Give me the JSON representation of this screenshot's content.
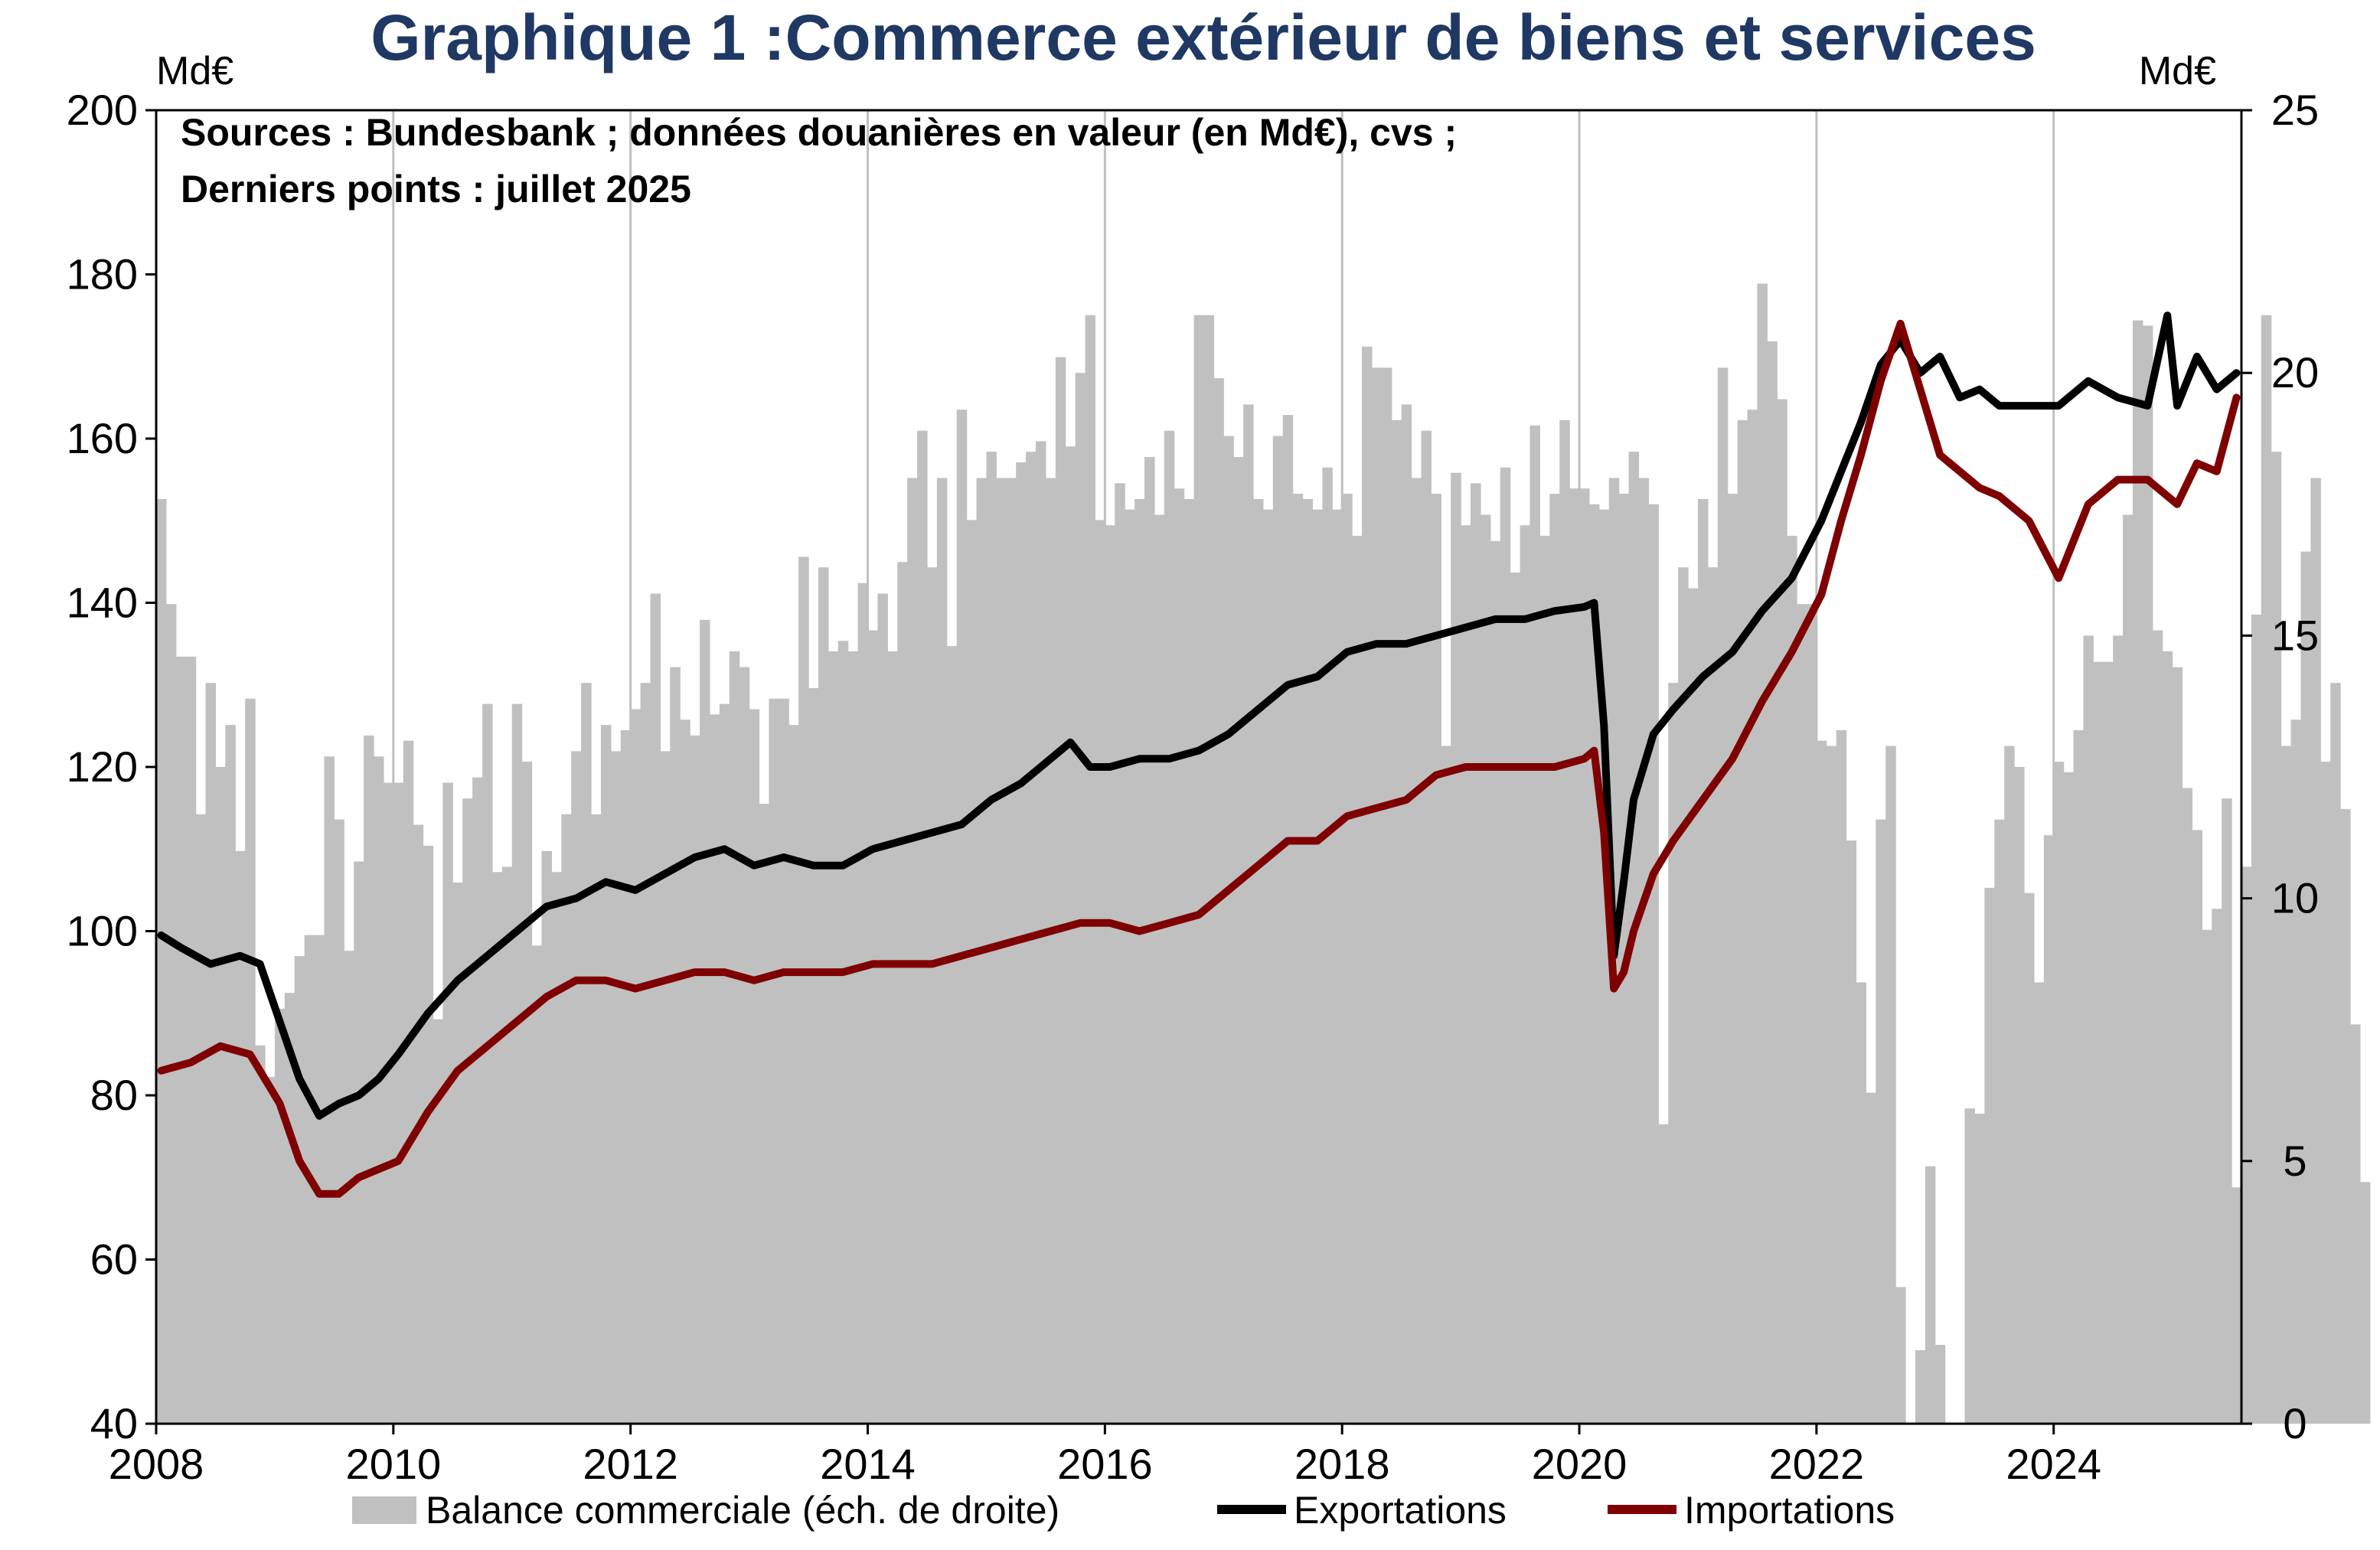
{
  "chart_data": {
    "type": "bar+line",
    "title": "Graphique 1 :Commerce extérieur de biens et services",
    "left_unit": "Md€",
    "right_unit": "Md€",
    "notes": [
      "Sources : Bundesbank ; données douanières en valeur (en Md€), cvs ;",
      "Derniers points : juillet 2025"
    ],
    "x_start": "2008-01",
    "x_end": "2025-07",
    "x_ticks": [
      "2008",
      "2010",
      "2012",
      "2014",
      "2016",
      "2018",
      "2020",
      "2022",
      "2024"
    ],
    "y_left": {
      "min": 40,
      "max": 200,
      "ticks": [
        "40",
        "60",
        "80",
        "100",
        "120",
        "140",
        "160",
        "180",
        "200"
      ]
    },
    "y_right": {
      "min": 0,
      "max": 25,
      "ticks": [
        "0",
        "5",
        "10",
        "15",
        "20",
        "25"
      ]
    },
    "grid": "vertical",
    "legend_position": "bottom",
    "series": [
      {
        "name": "Balance commerciale (éch. de droite)",
        "kind": "bar",
        "axis": "right",
        "color": "#C0C0C0",
        "values": [
          17.6,
          15.6,
          14.6,
          14.6,
          11.6,
          14.1,
          12.5,
          13.3,
          10.9,
          13.8,
          7.2,
          6.6,
          7.9,
          8.2,
          8.9,
          9.3,
          9.3,
          12.7,
          11.5,
          9.0,
          10.7,
          13.1,
          12.7,
          12.2,
          12.2,
          13.0,
          11.4,
          11.0,
          7.7,
          12.2,
          10.3,
          11.9,
          12.3,
          13.7,
          10.5,
          10.6,
          13.7,
          12.6,
          9.1,
          10.9,
          10.5,
          11.6,
          12.8,
          14.1,
          11.6,
          13.3,
          12.8,
          13.2,
          13.6,
          14.1,
          15.8,
          12.8,
          14.4,
          13.4,
          13.1,
          15.3,
          13.5,
          13.7,
          14.7,
          14.4,
          13.6,
          11.8,
          13.8,
          13.8,
          13.3,
          16.5,
          14.0,
          16.3,
          14.7,
          14.9,
          14.7,
          16.0,
          15.1,
          15.8,
          14.7,
          16.4,
          18.0,
          18.9,
          16.3,
          18.0,
          14.8,
          19.3,
          17.2,
          18.0,
          18.5,
          18.0,
          18.0,
          18.3,
          18.5,
          18.7,
          18.0,
          20.3,
          18.6,
          20.0,
          21.1,
          17.2,
          17.1,
          17.9,
          17.4,
          17.6,
          18.4,
          17.3,
          18.9,
          17.8,
          17.6,
          21.1,
          21.1,
          19.9,
          18.8,
          18.4,
          19.4,
          17.6,
          17.4,
          18.8,
          19.2,
          17.7,
          17.6,
          17.4,
          18.2,
          17.4,
          17.7,
          16.9,
          20.5,
          20.1,
          20.1,
          19.1,
          19.4,
          18.0,
          18.9,
          17.7,
          12.9,
          18.1,
          17.1,
          17.9,
          17.3,
          16.8,
          18.2,
          16.2,
          17.1,
          19.0,
          16.9,
          17.7,
          19.1,
          17.8,
          17.8,
          17.5,
          17.4,
          18.0,
          17.7,
          18.5,
          18.0,
          17.5,
          5.7,
          14.1,
          16.3,
          15.9,
          17.6,
          16.3,
          20.1,
          17.7,
          19.1,
          19.3,
          21.7,
          20.6,
          19.5,
          16.9,
          15.6,
          15.6,
          13.0,
          12.9,
          13.2,
          11.1,
          8.4,
          6.3,
          11.5,
          12.9,
          2.6,
          0.0,
          1.4,
          4.9,
          1.5,
          0.0,
          0.0,
          6.0,
          5.9,
          10.2,
          11.5,
          12.9,
          12.5,
          10.1,
          8.4,
          11.2,
          12.6,
          12.4,
          13.2,
          15.0,
          14.5,
          14.5,
          15.0,
          17.3,
          21.0,
          20.9,
          15.1,
          14.7,
          14.4,
          12.1,
          11.3,
          9.4,
          9.8,
          11.9,
          4.5,
          10.6,
          15.4,
          21.1,
          18.5,
          12.9,
          13.4,
          16.6,
          18.0,
          12.6,
          14.1,
          11.7,
          7.6,
          4.6
        ]
      },
      {
        "name": "Exportations",
        "kind": "line",
        "axis": "left",
        "color": "#000000",
        "points": [
          [
            "2008-01",
            99.5
          ],
          [
            "2008-03",
            98.0
          ],
          [
            "2008-06",
            96.0
          ],
          [
            "2008-09",
            97.0
          ],
          [
            "2008-11",
            96.0
          ],
          [
            "2009-01",
            89.0
          ],
          [
            "2009-03",
            82.0
          ],
          [
            "2009-05",
            77.5
          ],
          [
            "2009-07",
            79.0
          ],
          [
            "2009-09",
            80.0
          ],
          [
            "2009-11",
            82.0
          ],
          [
            "2010-01",
            85.0
          ],
          [
            "2010-04",
            90.0
          ],
          [
            "2010-07",
            94.0
          ],
          [
            "2010-10",
            97.0
          ],
          [
            "2011-01",
            100.0
          ],
          [
            "2011-04",
            103.0
          ],
          [
            "2011-07",
            104.0
          ],
          [
            "2011-10",
            106.0
          ],
          [
            "2012-01",
            105.0
          ],
          [
            "2012-04",
            107.0
          ],
          [
            "2012-07",
            109.0
          ],
          [
            "2012-10",
            110.0
          ],
          [
            "2013-01",
            108.0
          ],
          [
            "2013-04",
            109.0
          ],
          [
            "2013-07",
            108.0
          ],
          [
            "2013-10",
            108.0
          ],
          [
            "2014-01",
            110.0
          ],
          [
            "2014-04",
            111.0
          ],
          [
            "2014-07",
            112.0
          ],
          [
            "2014-10",
            113.0
          ],
          [
            "2015-01",
            116.0
          ],
          [
            "2015-04",
            118.0
          ],
          [
            "2015-07",
            121.0
          ],
          [
            "2015-09",
            123.0
          ],
          [
            "2015-11",
            120.0
          ],
          [
            "2016-01",
            120.0
          ],
          [
            "2016-04",
            121.0
          ],
          [
            "2016-07",
            121.0
          ],
          [
            "2016-10",
            122.0
          ],
          [
            "2017-01",
            124.0
          ],
          [
            "2017-04",
            127.0
          ],
          [
            "2017-07",
            130.0
          ],
          [
            "2017-10",
            131.0
          ],
          [
            "2018-01",
            134.0
          ],
          [
            "2018-04",
            135.0
          ],
          [
            "2018-07",
            135.0
          ],
          [
            "2018-10",
            136.0
          ],
          [
            "2019-01",
            137.0
          ],
          [
            "2019-04",
            138.0
          ],
          [
            "2019-07",
            138.0
          ],
          [
            "2019-10",
            139.0
          ],
          [
            "2020-01",
            139.5
          ],
          [
            "2020-02",
            140.0
          ],
          [
            "2020-03",
            125.0
          ],
          [
            "2020-04",
            97.0
          ],
          [
            "2020-05",
            106.0
          ],
          [
            "2020-06",
            116.0
          ],
          [
            "2020-08",
            124.0
          ],
          [
            "2020-10",
            127.0
          ],
          [
            "2021-01",
            131.0
          ],
          [
            "2021-04",
            134.0
          ],
          [
            "2021-07",
            139.0
          ],
          [
            "2021-10",
            143.0
          ],
          [
            "2022-01",
            150.0
          ],
          [
            "2022-03",
            156.0
          ],
          [
            "2022-05",
            162.0
          ],
          [
            "2022-07",
            169.0
          ],
          [
            "2022-09",
            172.0
          ],
          [
            "2022-11",
            168.0
          ],
          [
            "2023-01",
            170.0
          ],
          [
            "2023-03",
            165.0
          ],
          [
            "2023-05",
            166.0
          ],
          [
            "2023-07",
            164.0
          ],
          [
            "2023-10",
            164.0
          ],
          [
            "2024-01",
            164.0
          ],
          [
            "2024-04",
            167.0
          ],
          [
            "2024-07",
            165.0
          ],
          [
            "2024-10",
            164.0
          ],
          [
            "2024-12",
            175.0
          ],
          [
            "2025-01",
            164.0
          ],
          [
            "2025-03",
            170.0
          ],
          [
            "2025-05",
            166.0
          ],
          [
            "2025-07",
            168.0
          ]
        ]
      },
      {
        "name": "Importations",
        "kind": "line",
        "axis": "left",
        "color": "#7F0000",
        "points": [
          [
            "2008-01",
            83.0
          ],
          [
            "2008-04",
            84.0
          ],
          [
            "2008-07",
            86.0
          ],
          [
            "2008-10",
            85.0
          ],
          [
            "2009-01",
            79.0
          ],
          [
            "2009-03",
            72.0
          ],
          [
            "2009-05",
            68.0
          ],
          [
            "2009-07",
            68.0
          ],
          [
            "2009-09",
            70.0
          ],
          [
            "2009-11",
            71.0
          ],
          [
            "2010-01",
            72.0
          ],
          [
            "2010-04",
            78.0
          ],
          [
            "2010-07",
            83.0
          ],
          [
            "2010-10",
            86.0
          ],
          [
            "2011-01",
            89.0
          ],
          [
            "2011-04",
            92.0
          ],
          [
            "2011-07",
            94.0
          ],
          [
            "2011-10",
            94.0
          ],
          [
            "2012-01",
            93.0
          ],
          [
            "2012-04",
            94.0
          ],
          [
            "2012-07",
            95.0
          ],
          [
            "2012-10",
            95.0
          ],
          [
            "2013-01",
            94.0
          ],
          [
            "2013-04",
            95.0
          ],
          [
            "2013-07",
            95.0
          ],
          [
            "2013-10",
            95.0
          ],
          [
            "2014-01",
            96.0
          ],
          [
            "2014-04",
            96.0
          ],
          [
            "2014-07",
            96.0
          ],
          [
            "2014-10",
            97.0
          ],
          [
            "2015-01",
            98.0
          ],
          [
            "2015-04",
            99.0
          ],
          [
            "2015-07",
            100.0
          ],
          [
            "2015-10",
            101.0
          ],
          [
            "2016-01",
            101.0
          ],
          [
            "2016-04",
            100.0
          ],
          [
            "2016-07",
            101.0
          ],
          [
            "2016-10",
            102.0
          ],
          [
            "2017-01",
            105.0
          ],
          [
            "2017-04",
            108.0
          ],
          [
            "2017-07",
            111.0
          ],
          [
            "2017-10",
            111.0
          ],
          [
            "2018-01",
            114.0
          ],
          [
            "2018-04",
            115.0
          ],
          [
            "2018-07",
            116.0
          ],
          [
            "2018-10",
            119.0
          ],
          [
            "2019-01",
            120.0
          ],
          [
            "2019-04",
            120.0
          ],
          [
            "2019-07",
            120.0
          ],
          [
            "2019-10",
            120.0
          ],
          [
            "2020-01",
            121.0
          ],
          [
            "2020-02",
            122.0
          ],
          [
            "2020-03",
            112.0
          ],
          [
            "2020-04",
            93.0
          ],
          [
            "2020-05",
            95.0
          ],
          [
            "2020-06",
            100.0
          ],
          [
            "2020-08",
            107.0
          ],
          [
            "2020-10",
            111.0
          ],
          [
            "2021-01",
            116.0
          ],
          [
            "2021-04",
            121.0
          ],
          [
            "2021-07",
            128.0
          ],
          [
            "2021-10",
            134.0
          ],
          [
            "2022-01",
            141.0
          ],
          [
            "2022-03",
            150.0
          ],
          [
            "2022-05",
            158.0
          ],
          [
            "2022-07",
            167.0
          ],
          [
            "2022-09",
            174.0
          ],
          [
            "2022-11",
            166.0
          ],
          [
            "2023-01",
            158.0
          ],
          [
            "2023-03",
            156.0
          ],
          [
            "2023-05",
            154.0
          ],
          [
            "2023-07",
            153.0
          ],
          [
            "2023-10",
            150.0
          ],
          [
            "2024-01",
            143.0
          ],
          [
            "2024-04",
            152.0
          ],
          [
            "2024-07",
            155.0
          ],
          [
            "2024-10",
            155.0
          ],
          [
            "2025-01",
            152.0
          ],
          [
            "2025-03",
            157.0
          ],
          [
            "2025-05",
            156.0
          ],
          [
            "2025-07",
            165.0
          ]
        ]
      }
    ]
  }
}
